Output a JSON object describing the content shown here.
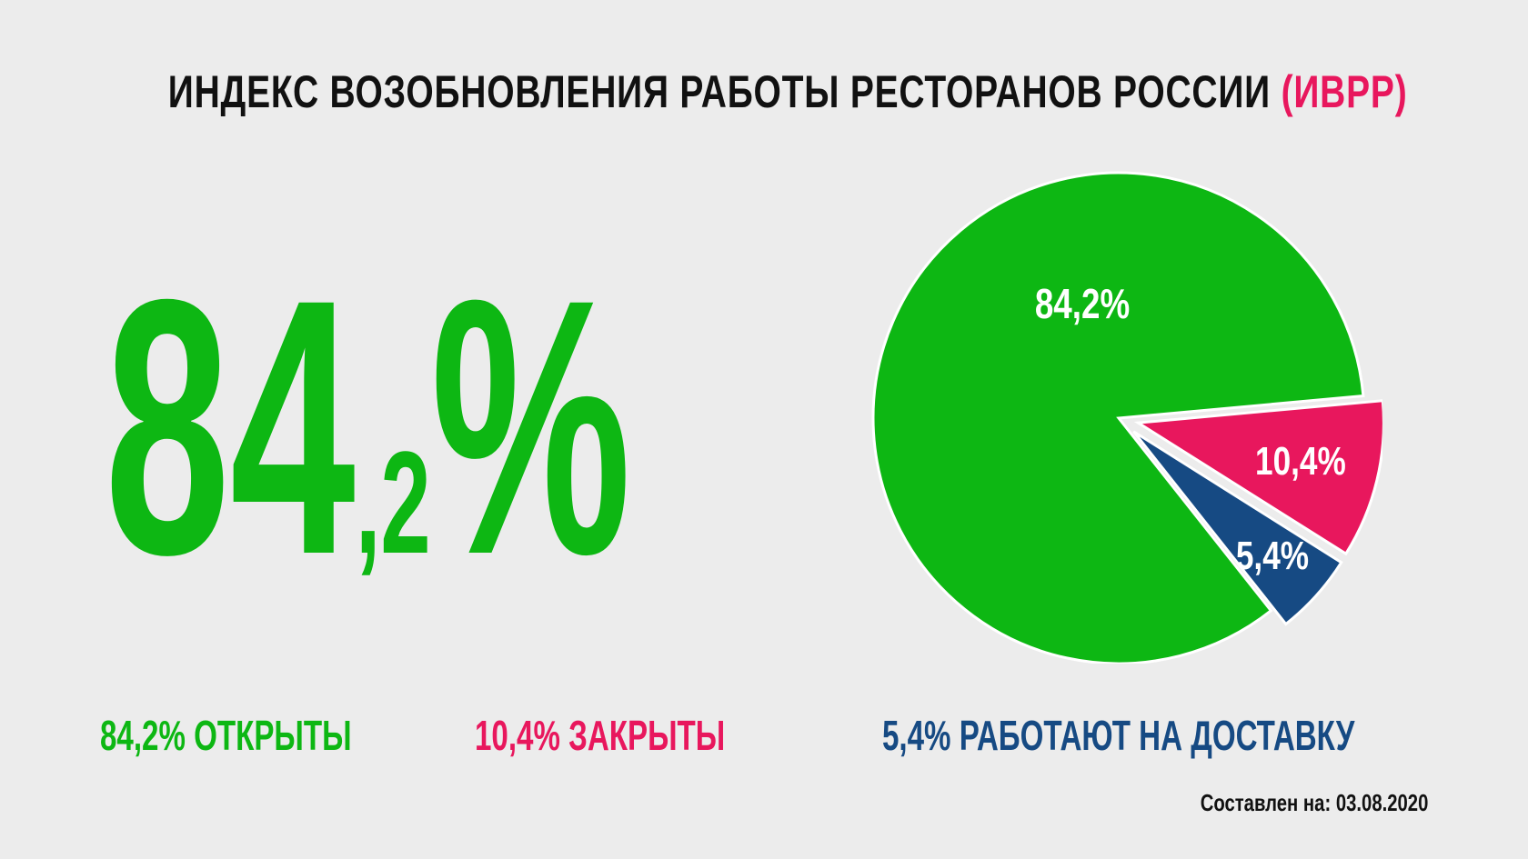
{
  "title": {
    "main": "ИНДЕКС ВОЗОБНОВЛЕНИЯ РАБОТЫ РЕСТОРАНОВ РОССИИ",
    "accent": "(ИВРР)"
  },
  "headline": {
    "integer": "84",
    "fraction": ",2",
    "percent": "%"
  },
  "legend": {
    "open": "84,2% ОТКРЫТЫ",
    "closed": "10,4% ЗАКРЫТЫ",
    "delivery": "5,4% РАБОТАЮТ НА ДОСТАВКУ"
  },
  "footer": "Составлен на: 03.08.2020",
  "colors": {
    "open": "#0db713",
    "closed": "#e8175d",
    "delivery": "#164a83",
    "background": "#ececec"
  },
  "chart_data": {
    "type": "pie",
    "title": "ИНДЕКС ВОЗОБНОВЛЕНИЯ РАБОТЫ РЕСТОРАНОВ РОССИИ (ИВРР)",
    "slices": [
      {
        "label": "84,2%",
        "value": 84.2,
        "color": "#0db713",
        "exploded": false
      },
      {
        "label": "10,4%",
        "value": 10.4,
        "color": "#e8175d",
        "exploded": true
      },
      {
        "label": "5,4%",
        "value": 5.4,
        "color": "#164a83",
        "exploded": true
      }
    ],
    "legend_placement": "bottom"
  }
}
